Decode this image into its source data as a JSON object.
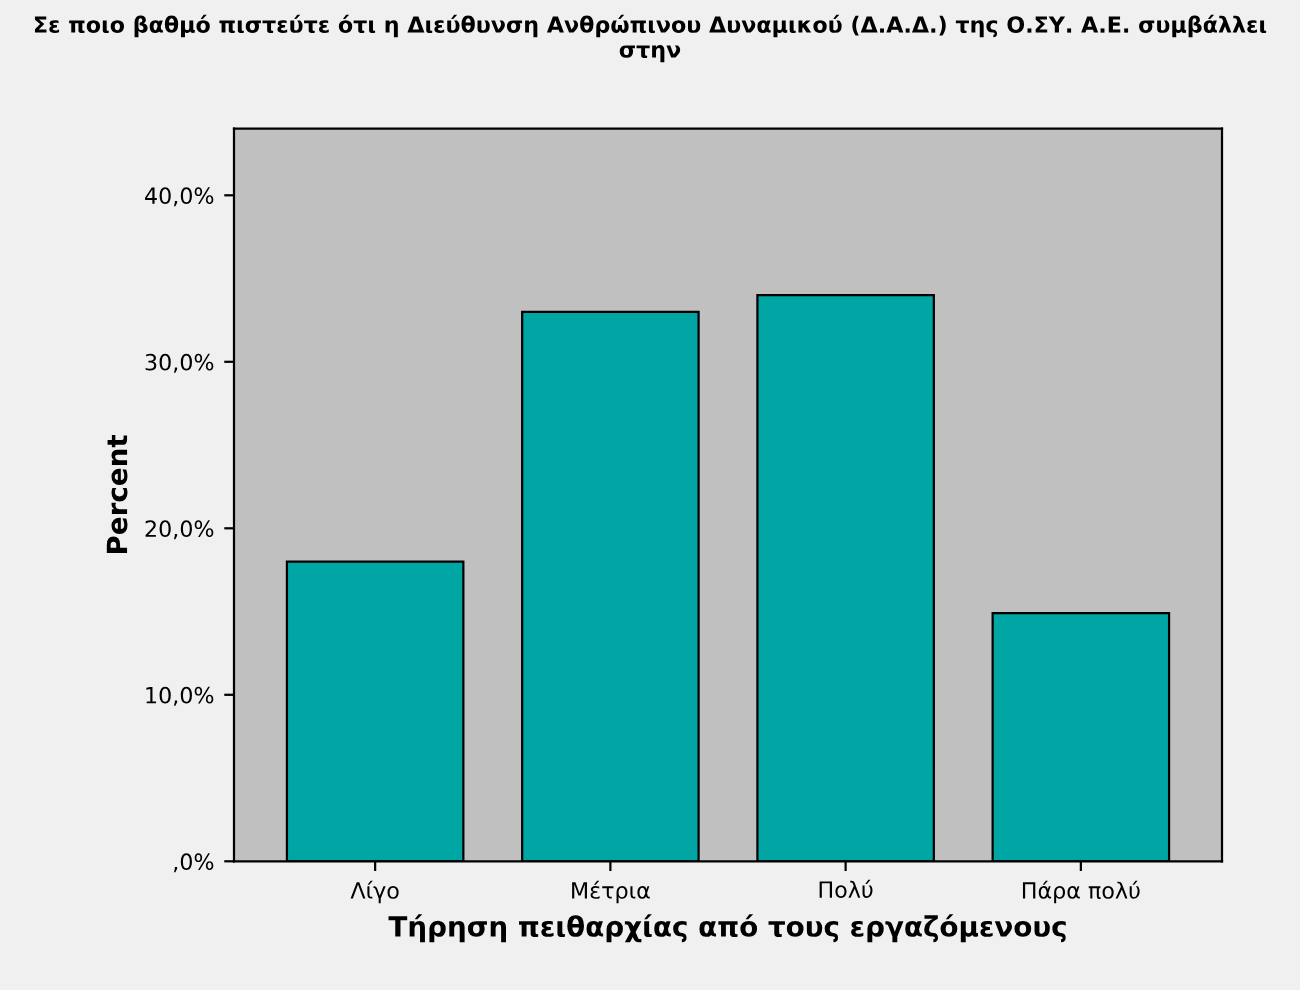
{
  "chart_data": {
    "type": "bar",
    "title": "Σε ποιο βαθμό πιστεύτε ότι η Διεύθυνση Ανθρώπινου Δυναμικού (Δ.Α.Δ.) της Ο.ΣΥ. Α.Ε. συμβάλλει στην",
    "xlabel": "Τήρηση πειθαρχίας από τους εργαζόμενους",
    "ylabel": "Percent",
    "categories": [
      "Λίγο",
      "Μέτρια",
      "Πολύ",
      "Πάρα πολύ"
    ],
    "values": [
      18.0,
      33.0,
      34.0,
      14.9
    ],
    "color": "#00a6a4",
    "ylim": [
      0,
      44
    ],
    "yticks": [
      {
        "value": 0,
        "label": ",0%"
      },
      {
        "value": 10,
        "label": "10,0%"
      },
      {
        "value": 20,
        "label": "20,0%"
      },
      {
        "value": 30,
        "label": "30,0%"
      },
      {
        "value": 40,
        "label": "40,0%"
      }
    ],
    "grid": false,
    "legend": false
  }
}
